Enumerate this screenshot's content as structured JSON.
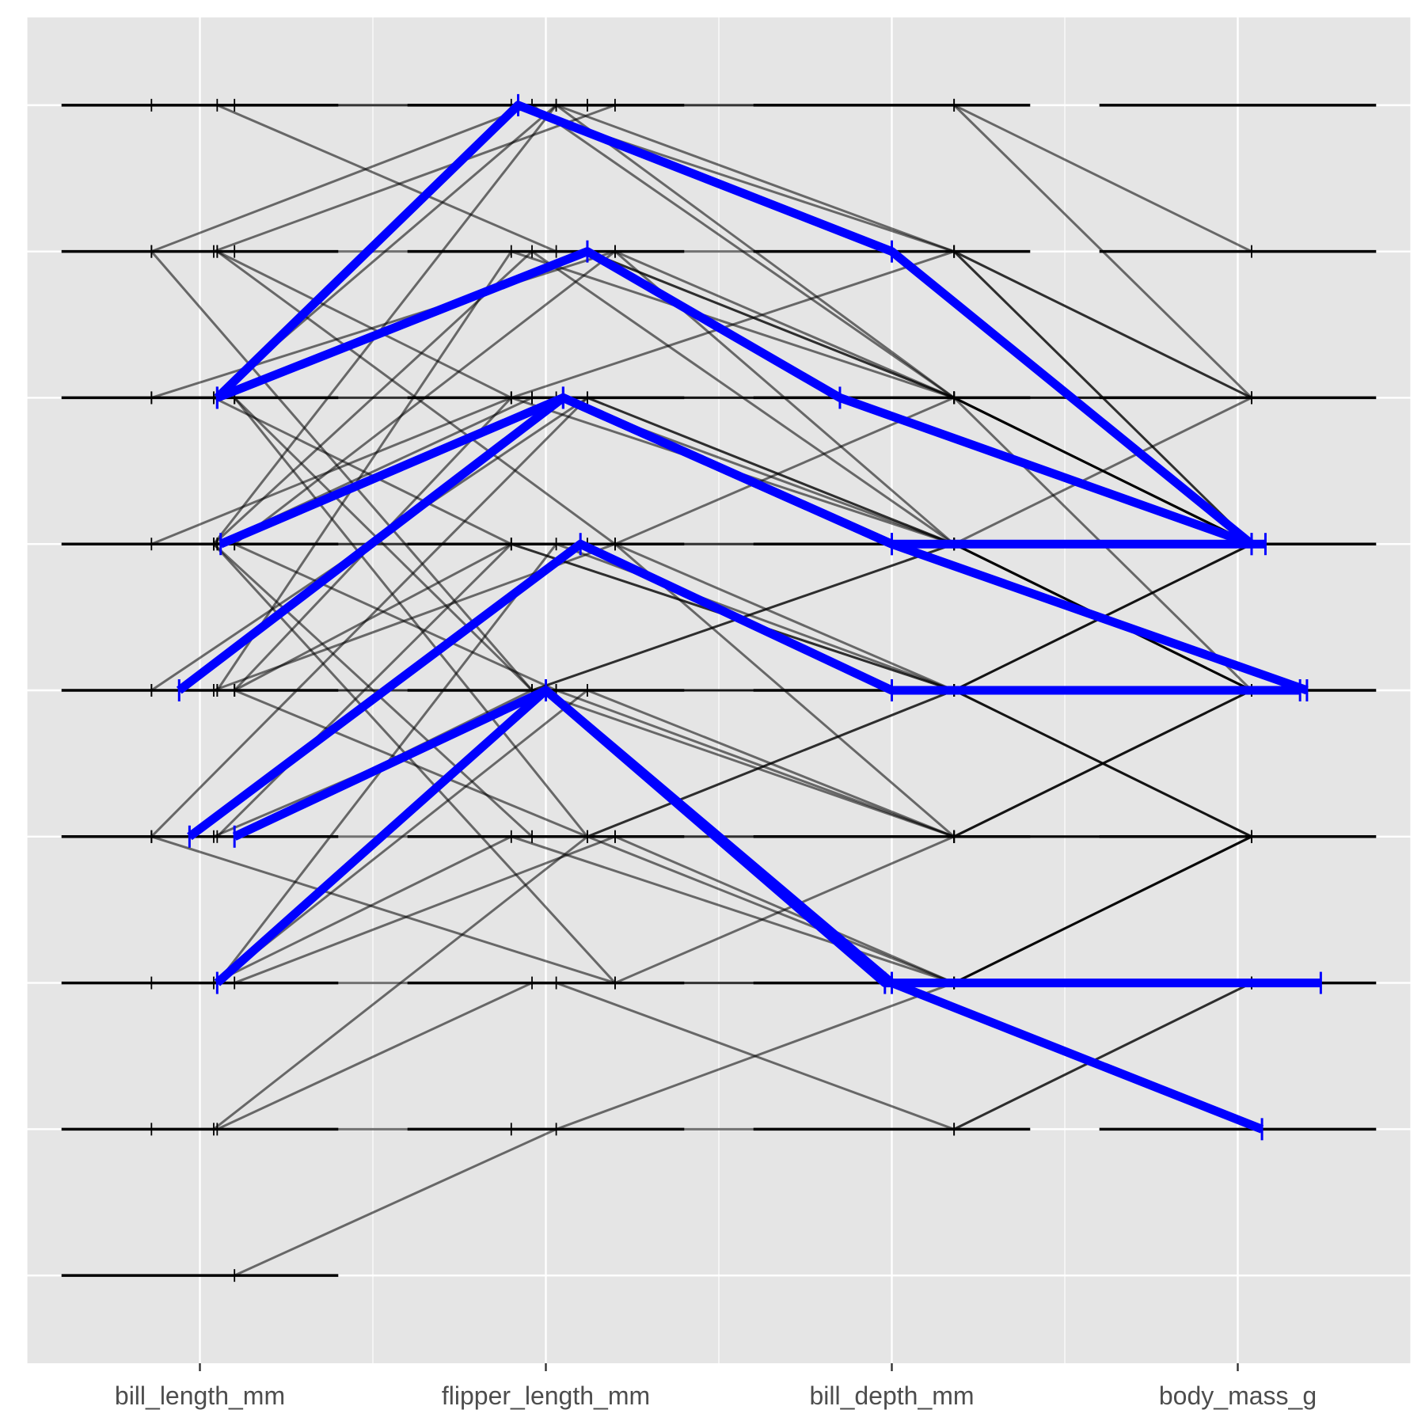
{
  "chart_data": {
    "type": "parallel-coordinates",
    "title": "",
    "axes": [
      "bill_length_mm",
      "flipper_length_mm",
      "bill_depth_mm",
      "body_mass_g"
    ],
    "levels": 9,
    "x_range": [
      -0.5,
      3.5
    ],
    "y_range": [
      0.4,
      9.6
    ],
    "grid": true,
    "background_color": "#e5e5e5",
    "grid_color": "#ffffff",
    "line_color": "#000000",
    "highlight_color": "#0000ff",
    "legend": "none",
    "level_spread": {
      "bill_length_mm": [
        -0.14,
        0.04,
        0.05,
        0.1
      ],
      "flipper_length_mm": [
        -0.1,
        -0.04,
        0.03,
        0.12,
        0.2
      ],
      "bill_depth_mm": [
        -0.25,
        -0.15,
        -0.05,
        0.0,
        0.05,
        0.12,
        0.18
      ],
      "body_mass_g": [
        -0.15,
        0.02,
        0.04,
        0.08,
        0.12,
        0.18,
        0.27
      ]
    },
    "sample_lines": [
      [
        9,
        9,
        9,
        7
      ],
      [
        9,
        9,
        8,
        7
      ],
      [
        9,
        8,
        8,
        6
      ],
      [
        8,
        9,
        9,
        8
      ],
      [
        8,
        9,
        7,
        6
      ],
      [
        8,
        8,
        7,
        6
      ],
      [
        8,
        7,
        8,
        7
      ],
      [
        7,
        9,
        8,
        6
      ],
      [
        7,
        8,
        6,
        5
      ],
      [
        7,
        7,
        7,
        6
      ],
      [
        7,
        8,
        7,
        5
      ],
      [
        7,
        6,
        6,
        5
      ],
      [
        7,
        7,
        6,
        6
      ],
      [
        6,
        8,
        7,
        7
      ],
      [
        6,
        7,
        7,
        6
      ],
      [
        6,
        6,
        6,
        5
      ],
      [
        6,
        7,
        6,
        7
      ],
      [
        6,
        5,
        5,
        4
      ],
      [
        6,
        6,
        5,
        6
      ],
      [
        6,
        8,
        6,
        5
      ],
      [
        5,
        7,
        6,
        6
      ],
      [
        5,
        6,
        5,
        5
      ],
      [
        5,
        5,
        5,
        4
      ],
      [
        5,
        6,
        4,
        5
      ],
      [
        5,
        5,
        6,
        6
      ],
      [
        5,
        4,
        5,
        4
      ],
      [
        4,
        6,
        5,
        5
      ],
      [
        4,
        5,
        4,
        4
      ],
      [
        4,
        4,
        3,
        4
      ],
      [
        4,
        5,
        5,
        6
      ],
      [
        3,
        5,
        4,
        4
      ],
      [
        3,
        4,
        3,
        3
      ],
      [
        3,
        3,
        2,
        3
      ],
      [
        3,
        4,
        4,
        5
      ],
      [
        2,
        3,
        3,
        4
      ],
      [
        2,
        4,
        3,
        4
      ],
      [
        2,
        2,
        2,
        3
      ],
      [
        1,
        2,
        3,
        4
      ],
      [
        8,
        6,
        7,
        6
      ],
      [
        6,
        4,
        4,
        5
      ],
      [
        4,
        7,
        6,
        6
      ],
      [
        5,
        7,
        7,
        7
      ],
      [
        3,
        6,
        5,
        6
      ],
      [
        6,
        3,
        4,
        4
      ],
      [
        8,
        5,
        6,
        5
      ],
      [
        7,
        4,
        5,
        5
      ],
      [
        5,
        8,
        7,
        7
      ],
      [
        6,
        9,
        7,
        6
      ],
      [
        4,
        3,
        3,
        3
      ],
      [
        7,
        5,
        4,
        4
      ]
    ],
    "highlight_lines": [
      {
        "values": [
          7,
          9,
          8,
          6
        ],
        "offsets": [
          0.05,
          -0.08,
          0.0,
          0.04
        ]
      },
      {
        "values": [
          7,
          8,
          7,
          6
        ],
        "offsets": [
          0.05,
          0.12,
          -0.15,
          0.04
        ]
      },
      {
        "values": [
          6,
          7,
          6,
          6
        ],
        "offsets": [
          0.06,
          0.05,
          0.0,
          0.08
        ]
      },
      {
        "values": [
          5,
          7,
          6,
          5
        ],
        "offsets": [
          -0.06,
          0.05,
          0.0,
          0.2
        ]
      },
      {
        "values": [
          4,
          6,
          5,
          5
        ],
        "offsets": [
          -0.03,
          0.1,
          0.0,
          0.18
        ]
      },
      {
        "values": [
          4,
          5,
          3,
          2
        ],
        "offsets": [
          0.1,
          0.0,
          0.0,
          0.07
        ]
      },
      {
        "values": [
          3,
          5,
          3,
          3
        ],
        "offsets": [
          0.05,
          0.0,
          -0.02,
          0.24
        ]
      }
    ]
  }
}
